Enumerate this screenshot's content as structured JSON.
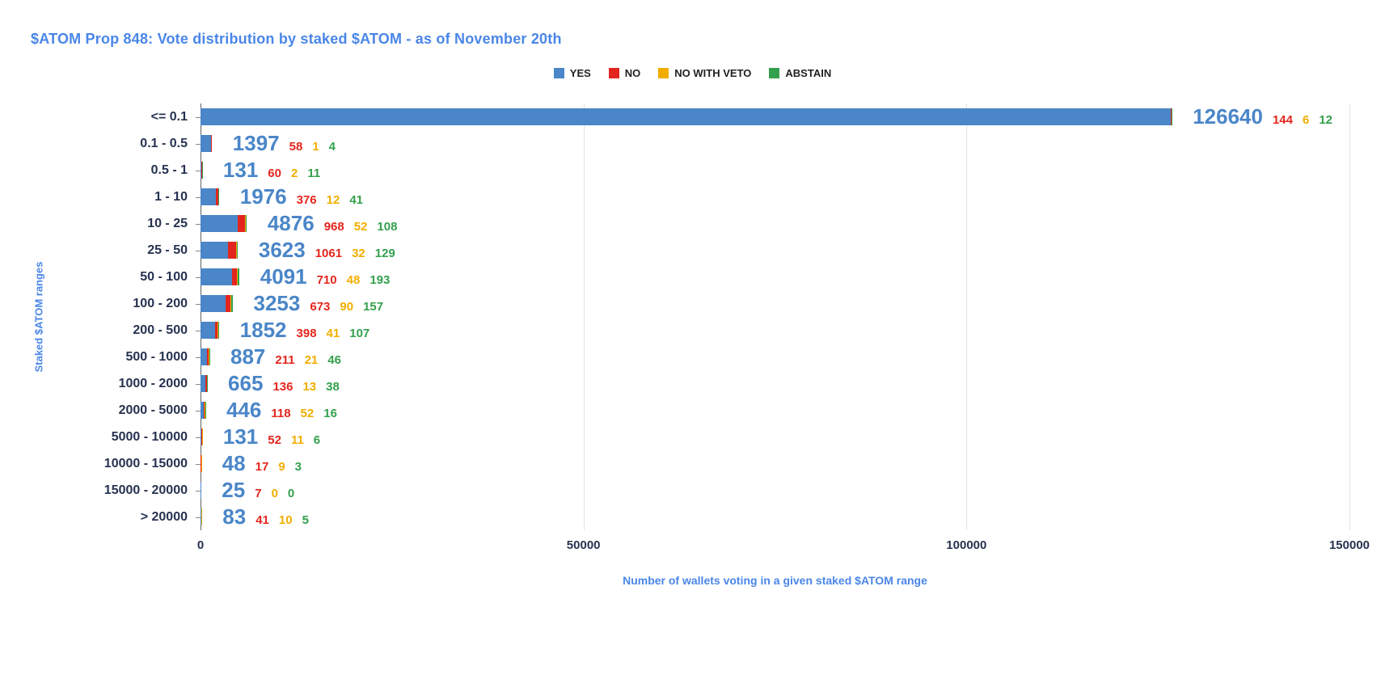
{
  "chart_data": {
    "type": "bar",
    "orientation": "horizontal",
    "stacked": true,
    "title": "$ATOM Prop 848: Vote distribution by staked $ATOM - as of November 20th",
    "xlabel": "Number of wallets voting in a given staked $ATOM range",
    "ylabel": "Staked $ATOM ranges",
    "xlim": [
      0,
      150000
    ],
    "xticks": [
      0,
      50000,
      100000,
      150000
    ],
    "grid": true,
    "legend_position": "top",
    "categories": [
      "<= 0.1",
      "0.1 - 0.5",
      "0.5 - 1",
      "1 - 10",
      "10 - 25",
      "25 - 50",
      "50 - 100",
      "100 - 200",
      "200 - 500",
      "500 - 1000",
      "1000 - 2000",
      "2000 - 5000",
      "5000 - 10000",
      "10000 - 15000",
      "15000 - 20000",
      "> 20000"
    ],
    "series": [
      {
        "name": "YES",
        "color": "#4a86c8",
        "values": [
          126640,
          1397,
          131,
          1976,
          4876,
          3623,
          4091,
          3253,
          1852,
          887,
          665,
          446,
          131,
          48,
          25,
          83
        ]
      },
      {
        "name": "NO",
        "color": "#e3261d",
        "values": [
          144,
          58,
          60,
          376,
          968,
          1061,
          710,
          673,
          398,
          211,
          136,
          118,
          52,
          17,
          7,
          41
        ]
      },
      {
        "name": "NO WITH VETO",
        "color": "#f1ae00",
        "values": [
          6,
          1,
          2,
          12,
          52,
          32,
          48,
          90,
          41,
          21,
          13,
          52,
          11,
          9,
          0,
          10
        ]
      },
      {
        "name": "ABSTAIN",
        "color": "#34a04d",
        "values": [
          12,
          4,
          11,
          41,
          108,
          129,
          193,
          157,
          107,
          46,
          38,
          16,
          6,
          3,
          0,
          5
        ]
      }
    ]
  }
}
